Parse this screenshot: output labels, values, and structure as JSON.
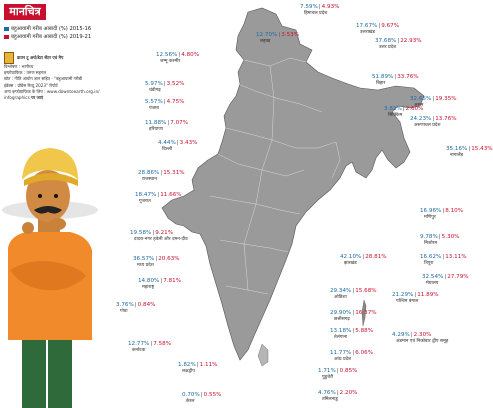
{
  "title": "मानचित्र",
  "legend": [
    {
      "label": "बहुआयामी गरीब आबादी (%) 2015-16",
      "color": "#1b6aa5"
    },
    {
      "label": "बहुआयामी गरीब आबादी (%) 2019-21",
      "color": "#c8102e"
    }
  ],
  "credits": {
    "org": "डाउन टू अर्थ/डेटा सेंटर एवं मैप",
    "line1": "विश्लेषण : भागीरथ",
    "line2": "इन्फोग्राफिक : तरुण सहगल",
    "line3": "स्रोत : नीति आयोग ज्ञान सहित - \"बहुआयामी गरीबी",
    "line4": "इंडेक्स : प्रोग्रेस रिव्यू 2023\" रिपोर्ट",
    "line5": "अन्य इन्फोग्राफिक के लिए : www.downtoearth.org.in/",
    "line6": "infographics",
    "line7": "पर जाएं"
  },
  "states": [
    {
      "id": "himachal",
      "name": "हिमाचल प्रदेश",
      "v1": "7.59%",
      "v2": "4.93%"
    },
    {
      "id": "ladakh",
      "name": "लद्दाख",
      "v1": "12.70%",
      "v2": "3.53%"
    },
    {
      "id": "uttarakhand",
      "name": "उत्तराखंड",
      "v1": "17.67%",
      "v2": "9.67%"
    },
    {
      "id": "jk",
      "name": "जम्मू कश्मीर",
      "v1": "12.56%",
      "v2": "4.80%"
    },
    {
      "id": "up",
      "name": "उत्तर प्रदेश",
      "v1": "37.68%",
      "v2": "22.93%"
    },
    {
      "id": "chandigarh",
      "name": "चंडीगढ़",
      "v1": "5.97%",
      "v2": "3.52%"
    },
    {
      "id": "punjab",
      "name": "पंजाब",
      "v1": "5.57%",
      "v2": "4.75%"
    },
    {
      "id": "bihar",
      "name": "बिहार",
      "v1": "51.89%",
      "v2": "33.76%"
    },
    {
      "id": "sikkim",
      "name": "सिक्किम",
      "v1": "3.82%",
      "v2": "2.60%"
    },
    {
      "id": "haryana",
      "name": "हरियाणा",
      "v1": "11.88%",
      "v2": "7.07%"
    },
    {
      "id": "assam",
      "name": "असम",
      "v1": "32.65%",
      "v2": "19.35%"
    },
    {
      "id": "arunachal",
      "name": "अरुणाचल प्रदेश",
      "v1": "24.23%",
      "v2": "13.76%"
    },
    {
      "id": "delhi",
      "name": "दिल्ली",
      "v1": "4.44%",
      "v2": "3.43%"
    },
    {
      "id": "rajasthan",
      "name": "राजस्थान",
      "v1": "28.86%",
      "v2": "15.31%"
    },
    {
      "id": "nagaland",
      "name": "नागालैंड",
      "v1": "35.16%",
      "v2": "15.43%"
    },
    {
      "id": "gujarat",
      "name": "गुजरात",
      "v1": "18.47%",
      "v2": "11.66%"
    },
    {
      "id": "manipur",
      "name": "मणिपुर",
      "v1": "16.96%",
      "v2": "8.10%"
    },
    {
      "id": "dnhdd",
      "name": "दादरा-नगर हवेली और दमन-दीव",
      "v1": "19.58%",
      "v2": "9.21%"
    },
    {
      "id": "mizoram",
      "name": "मिजोरम",
      "v1": "9.78%",
      "v2": "5.30%"
    },
    {
      "id": "mp",
      "name": "मध्य प्रदेश",
      "v1": "36.57%",
      "v2": "20.63%"
    },
    {
      "id": "tripura",
      "name": "त्रिपुरा",
      "v1": "16.62%",
      "v2": "13.11%"
    },
    {
      "id": "jharkhand",
      "name": "झारखंड",
      "v1": "42.10%",
      "v2": "28.81%"
    },
    {
      "id": "meghalaya",
      "name": "मेघालय",
      "v1": "32.54%",
      "v2": "27.79%"
    },
    {
      "id": "maharashtra",
      "name": "महाराष्ट्र",
      "v1": "14.80%",
      "v2": "7.81%"
    },
    {
      "id": "westbengal",
      "name": "पश्चिम बंगाल",
      "v1": "21.29%",
      "v2": "11.89%"
    },
    {
      "id": "odisha",
      "name": "ओडिशा",
      "v1": "29.34%",
      "v2": "15.68%"
    },
    {
      "id": "goa",
      "name": "गोवा",
      "v1": "3.76%",
      "v2": "0.84%"
    },
    {
      "id": "chhattisgarh",
      "name": "छत्तीसगढ़",
      "v1": "29.90%",
      "v2": "16.37%"
    },
    {
      "id": "telangana",
      "name": "तेलंगाना",
      "v1": "13.18%",
      "v2": "5.88%"
    },
    {
      "id": "karnataka",
      "name": "कर्नाटक",
      "v1": "12.77%",
      "v2": "7.58%"
    },
    {
      "id": "andhra",
      "name": "आंध्र प्रदेश",
      "v1": "11.77%",
      "v2": "6.06%"
    },
    {
      "id": "andaman",
      "name": "अंडमान एवं निकोबार द्वीप समूह",
      "v1": "4.29%",
      "v2": "2.30%"
    },
    {
      "id": "lakshadweep",
      "name": "लक्षद्वीप",
      "v1": "1.82%",
      "v2": "1.11%"
    },
    {
      "id": "puducherry",
      "name": "पुडुचेरी",
      "v1": "1.71%",
      "v2": "0.85%"
    },
    {
      "id": "kerala",
      "name": "केरल",
      "v1": "0.70%",
      "v2": "0.55%"
    },
    {
      "id": "tamilnadu",
      "name": "तमिलनाडु",
      "v1": "4.76%",
      "v2": "2.20%"
    }
  ]
}
